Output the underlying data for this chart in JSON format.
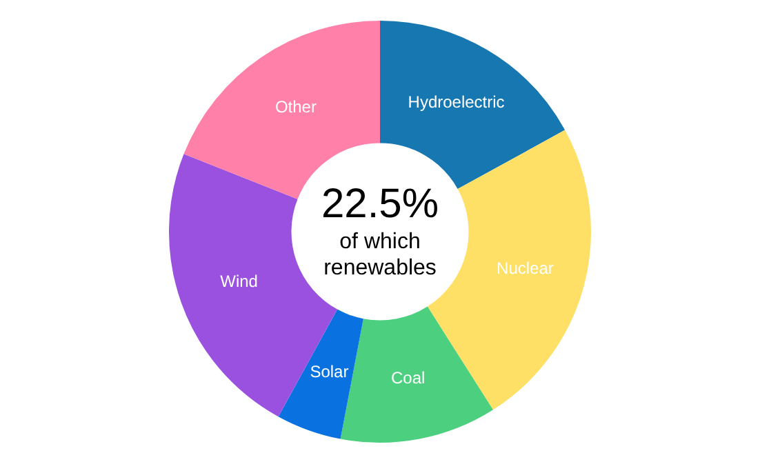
{
  "chart_data": {
    "type": "donut",
    "categories": [
      "Hydroelectric",
      "Nuclear",
      "Coal",
      "Solar",
      "Wind",
      "Other"
    ],
    "values": [
      17,
      24,
      12,
      5,
      23,
      19
    ],
    "colors": [
      "#1777b0",
      "#ffe066",
      "#4cd080",
      "#0a72e0",
      "#9b51e0",
      "#ff80a8"
    ],
    "annotations": [
      "22.5%",
      "of which renewables"
    ],
    "legend": false
  }
}
